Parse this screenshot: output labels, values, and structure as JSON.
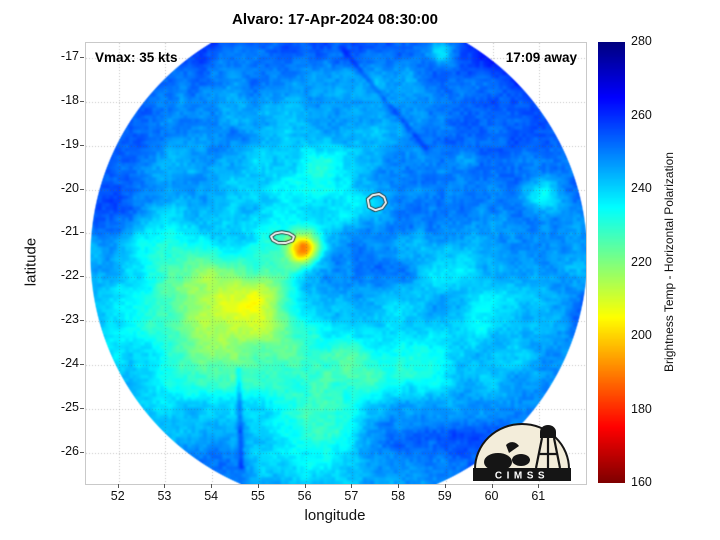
{
  "chart_data": {
    "type": "heatmap",
    "title": "Alvaro: 17-Apr-2024 08:30:00",
    "annotations": {
      "vmax": "Vmax: 35 kts",
      "eta": "17:09 away"
    },
    "xlabel": "longitude",
    "ylabel": "latitude",
    "x_ticks": [
      52,
      53,
      54,
      55,
      56,
      57,
      58,
      59,
      60,
      61
    ],
    "y_ticks": [
      -17,
      -18,
      -19,
      -20,
      -21,
      -22,
      -23,
      -24,
      -25,
      -26
    ],
    "xlim": [
      51.3,
      62.0
    ],
    "ylim": [
      -26.71,
      -16.66
    ],
    "grid": true,
    "colorbar": {
      "label": "Brightness Temp - Horizontal Polarization",
      "ticks": [
        280,
        260,
        240,
        220,
        200,
        180,
        160
      ],
      "min": 160,
      "max": 280,
      "colormap": "jet-reversed"
    },
    "swath": {
      "center_lon": 56.7,
      "center_lat": -21.5,
      "radius_deg": 5.33,
      "background_bt": 244,
      "edge_bt_boost": 7,
      "north_bt_gradient": 4,
      "east_bt_gradient": 2
    },
    "noise": [
      [
        0.5,
        7,
        0
      ],
      [
        1.6,
        4,
        13
      ],
      [
        4.5,
        2.5,
        31
      ],
      [
        12,
        2,
        57
      ]
    ],
    "features": [
      {
        "lon": 55.95,
        "lat": -21.33,
        "sigma": 0.22,
        "dbt": -40
      },
      {
        "lon": 55.55,
        "lat": -21.12,
        "sigma": 0.42,
        "dbt": -13
      },
      {
        "lon": 57.5,
        "lat": -20.32,
        "sigma": 0.38,
        "dbt": -8
      },
      {
        "lon": 54.25,
        "lat": -23.3,
        "sigma": 1.05,
        "dbt": -22
      },
      {
        "lon": 53.7,
        "lat": -22.0,
        "sigma": 0.75,
        "dbt": -12
      },
      {
        "lon": 54.95,
        "lat": -22.55,
        "sigma": 0.65,
        "dbt": -12
      },
      {
        "lon": 57.0,
        "lat": -24.15,
        "sigma": 0.5,
        "dbt": -10
      },
      {
        "lon": 58.2,
        "lat": -23.95,
        "sigma": 0.38,
        "dbt": -8
      },
      {
        "lon": 58.9,
        "lat": -16.85,
        "sigma": 0.2,
        "dbt": -18
      },
      {
        "lon": 61.0,
        "lat": -20.15,
        "sigma": 0.3,
        "dbt": -13
      },
      {
        "lon": 56.4,
        "lat": -19.55,
        "sigma": 0.5,
        "dbt": -6
      },
      {
        "lon": 53.0,
        "lat": -19.9,
        "sigma": 0.55,
        "dbt": -7
      },
      {
        "lon": 59.7,
        "lat": -23.0,
        "sigma": 0.33,
        "dbt": -8
      },
      {
        "lon": 56.6,
        "lat": -25.3,
        "sigma": 0.5,
        "dbt": -8
      },
      {
        "lon": 58.5,
        "lat": -21.5,
        "sigma": 0.6,
        "dbt": -5
      },
      {
        "lon": 52.6,
        "lat": -21.0,
        "sigma": 0.4,
        "dbt": -6
      }
    ],
    "streaks": [
      {
        "lon1": 54.55,
        "lat1": -24.1,
        "lon2": 54.62,
        "lat2": -26.3,
        "sigma": 0.05,
        "dbt": 9
      },
      {
        "lon1": 56.75,
        "lat1": -16.75,
        "lon2": 58.55,
        "lat2": -19.05,
        "sigma": 0.05,
        "dbt": 6
      },
      {
        "lon1": 55.05,
        "lat1": -22.4,
        "lon2": 55.85,
        "lat2": -21.55,
        "sigma": 0.3,
        "dbt": -9
      },
      {
        "lon1": 56.2,
        "lat1": -20.85,
        "lon2": 57.25,
        "lat2": -20.45,
        "sigma": 0.22,
        "dbt": -6
      },
      {
        "lon1": 57.9,
        "lat1": -22.6,
        "lon2": 59.2,
        "lat2": -21.9,
        "sigma": 0.3,
        "dbt": -5
      }
    ],
    "contours": [
      {
        "points": [
          [
            55.26,
            -21.07
          ],
          [
            55.35,
            -21.0
          ],
          [
            55.49,
            -20.97
          ],
          [
            55.64,
            -21.0
          ],
          [
            55.75,
            -21.07
          ],
          [
            55.72,
            -21.16
          ],
          [
            55.57,
            -21.22
          ],
          [
            55.4,
            -21.21
          ],
          [
            55.3,
            -21.15
          ]
        ]
      },
      {
        "points": [
          [
            57.33,
            -20.22
          ],
          [
            57.43,
            -20.13
          ],
          [
            57.57,
            -20.1
          ],
          [
            57.68,
            -20.17
          ],
          [
            57.72,
            -20.3
          ],
          [
            57.64,
            -20.42
          ],
          [
            57.49,
            -20.47
          ],
          [
            57.36,
            -20.4
          ]
        ]
      }
    ],
    "logo_text": "CIMSS"
  }
}
